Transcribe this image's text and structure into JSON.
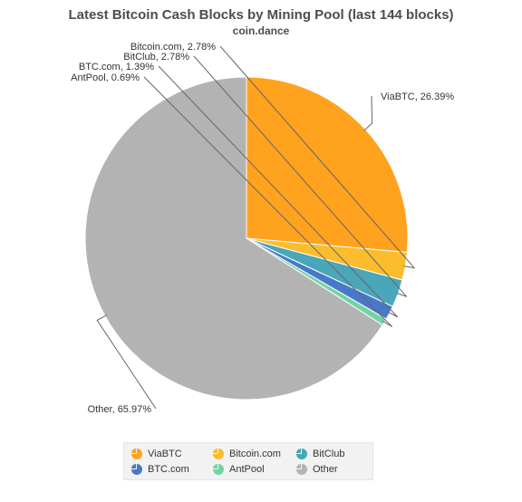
{
  "chart_data": {
    "type": "pie",
    "title": "Latest Bitcoin Cash Blocks by Mining Pool (last 144 blocks)",
    "subtitle": "coin.dance",
    "slices": [
      {
        "name": "ViaBTC",
        "value": 26.39,
        "label": "ViaBTC, 26.39%",
        "color": "#ffa21e"
      },
      {
        "name": "Bitcoin.com",
        "value": 2.78,
        "label": "Bitcoin.com, 2.78%",
        "color": "#fbbd2e"
      },
      {
        "name": "BitClub",
        "value": 2.78,
        "label": "BitClub, 2.78%",
        "color": "#4aa6b9"
      },
      {
        "name": "BTC.com",
        "value": 1.39,
        "label": "BTC.com, 1.39%",
        "color": "#4a78c9"
      },
      {
        "name": "AntPool",
        "value": 0.69,
        "label": "AntPool, 0.69%",
        "color": "#75d3a3"
      },
      {
        "name": "Other",
        "value": 65.97,
        "label": "Other, 65.97%",
        "color": "#b3b3b3"
      }
    ],
    "legend": {
      "placement": "bottom",
      "items": [
        "ViaBTC",
        "Bitcoin.com",
        "BitClub",
        "BTC.com",
        "AntPool",
        "Other"
      ]
    }
  }
}
